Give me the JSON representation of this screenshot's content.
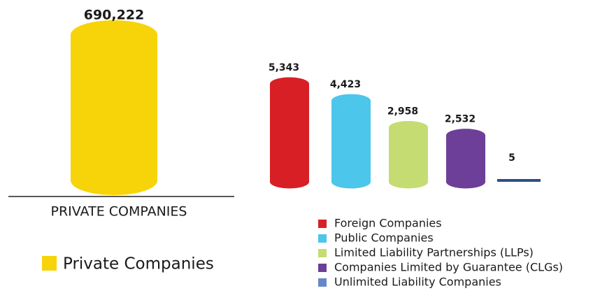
{
  "chart_data": [
    {
      "type": "bar",
      "xlabel": "PRIVATE COMPANIES",
      "series": [
        {
          "name": "Private Companies",
          "color": "#f7d40a",
          "values": [
            690222
          ],
          "value_labels": [
            "690,222"
          ]
        }
      ]
    },
    {
      "type": "bar",
      "series": [
        {
          "name": "Foreign Companies",
          "color": "#d81f26",
          "values": [
            5343
          ],
          "value_labels": [
            "5,343"
          ]
        },
        {
          "name": "Public Companies",
          "color": "#4cc6ea",
          "values": [
            4423
          ],
          "value_labels": [
            "4,423"
          ]
        },
        {
          "name": "Limited Liability Partnerships (LLPs)",
          "color": "#c5dc72",
          "values": [
            2958
          ],
          "value_labels": [
            "2,958"
          ]
        },
        {
          "name": "Companies Limited by Guarantee (CLGs)",
          "color": "#6d3f98",
          "values": [
            2532
          ],
          "value_labels": [
            "2,532"
          ]
        },
        {
          "name": "Unlimited Liability Companies",
          "color": "#2e4f86",
          "values": [
            5
          ],
          "value_labels": [
            "5"
          ]
        }
      ]
    }
  ]
}
